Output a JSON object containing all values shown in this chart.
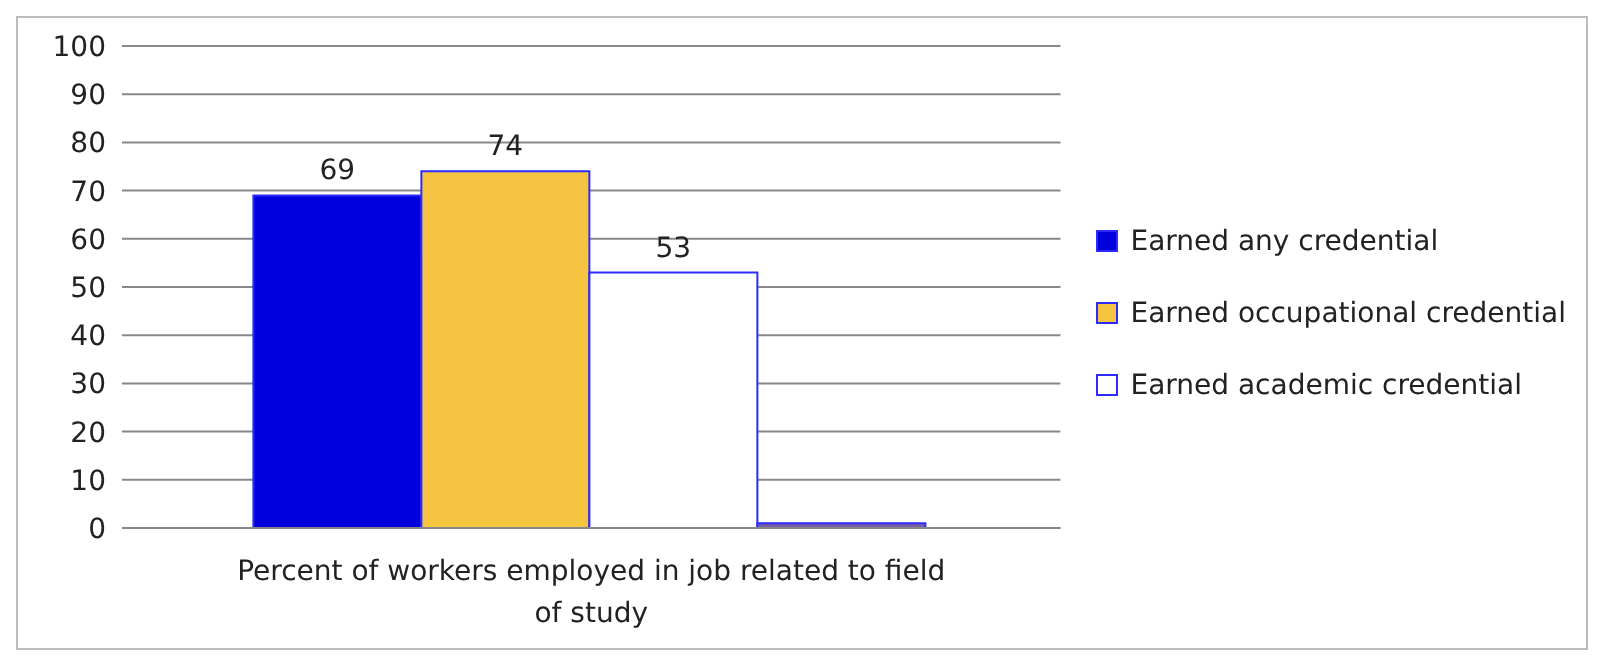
{
  "chart_data": {
    "type": "bar",
    "categories": [
      "Percent of workers employed in job related to field of study"
    ],
    "series": [
      {
        "name": "Earned any credential",
        "color": "#0000dd",
        "values": [
          69
        ],
        "value_labels": [
          "69"
        ]
      },
      {
        "name": "Earned occupational credential",
        "color": "#f5c542",
        "values": [
          74
        ],
        "value_labels": [
          "74"
        ]
      },
      {
        "name": "Earned academic credential",
        "color": "#ffffff",
        "values": [
          53
        ],
        "value_labels": [
          "53"
        ]
      },
      {
        "color": "#7a5fa8",
        "values": [
          1
        ],
        "value_labels": [
          null
        ]
      }
    ],
    "ylim": [
      0,
      100
    ],
    "yticks": [
      0,
      10,
      20,
      30,
      40,
      50,
      60,
      70,
      80,
      90,
      100
    ],
    "grid": "y",
    "legend": "right"
  }
}
